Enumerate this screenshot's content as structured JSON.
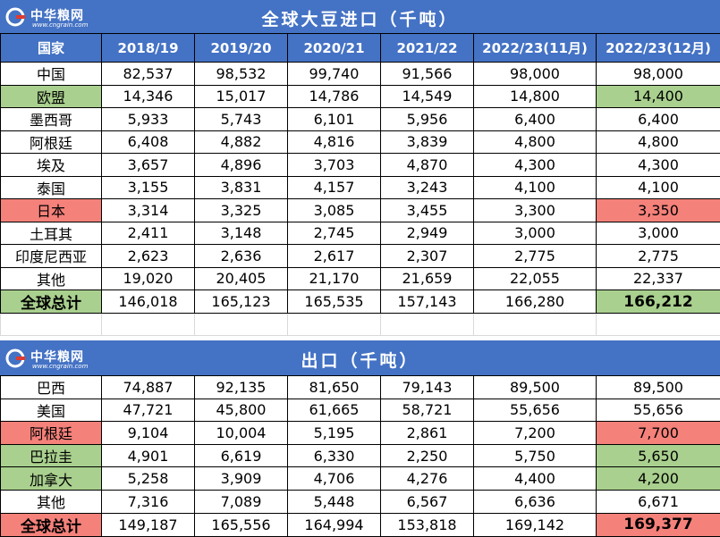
{
  "logo": {
    "text": "中华粮网",
    "url": "www.cngrain.com"
  },
  "import": {
    "title": "全球大豆进口（千吨）",
    "headers": [
      "国家",
      "2018/19",
      "2019/20",
      "2020/21",
      "2021/22",
      "2022/23(11月)",
      "2022/23(12月)"
    ],
    "rows": [
      [
        "中国",
        "82,537",
        "98,532",
        "99,740",
        "91,566",
        "98,000",
        "98,000"
      ],
      [
        "欧盟",
        "14,346",
        "15,017",
        "14,786",
        "14,549",
        "14,800",
        "14,400"
      ],
      [
        "墨西哥",
        "5,933",
        "5,743",
        "6,101",
        "5,956",
        "6,400",
        "6,400"
      ],
      [
        "阿根廷",
        "6,408",
        "4,882",
        "4,816",
        "3,839",
        "4,800",
        "4,800"
      ],
      [
        "埃及",
        "3,657",
        "4,896",
        "3,703",
        "4,870",
        "4,300",
        "4,300"
      ],
      [
        "泰国",
        "3,155",
        "3,831",
        "4,157",
        "3,243",
        "4,100",
        "4,100"
      ],
      [
        "日本",
        "3,314",
        "3,325",
        "3,085",
        "3,455",
        "3,300",
        "3,350"
      ],
      [
        "土耳其",
        "2,411",
        "3,148",
        "2,745",
        "2,949",
        "3,000",
        "3,000"
      ],
      [
        "印度尼西亚",
        "2,623",
        "2,636",
        "2,617",
        "2,307",
        "2,775",
        "2,775"
      ],
      [
        "其他",
        "19,020",
        "20,405",
        "21,170",
        "21,659",
        "22,055",
        "22,337"
      ],
      [
        "全球总计",
        "146,018",
        "165,123",
        "165,535",
        "157,143",
        "166,280",
        "166,212"
      ]
    ]
  },
  "export": {
    "title": "出口（千吨）",
    "rows": [
      [
        "巴西",
        "74,887",
        "92,135",
        "81,650",
        "79,143",
        "89,500",
        "89,500"
      ],
      [
        "美国",
        "47,721",
        "45,800",
        "61,665",
        "58,721",
        "55,656",
        "55,656"
      ],
      [
        "阿根廷",
        "9,104",
        "10,004",
        "5,195",
        "2,861",
        "7,200",
        "7,700"
      ],
      [
        "巴拉圭",
        "4,901",
        "6,619",
        "6,330",
        "2,250",
        "5,750",
        "5,650"
      ],
      [
        "加拿大",
        "5,258",
        "3,909",
        "4,706",
        "4,276",
        "4,400",
        "4,200"
      ],
      [
        "其他",
        "7,316",
        "7,089",
        "5,448",
        "6,567",
        "6,636",
        "6,671"
      ],
      [
        "全球总计",
        "149,187",
        "165,556",
        "164,994",
        "153,818",
        "169,142",
        "169,377"
      ]
    ]
  },
  "colors": {
    "header_blue": "#4472c4",
    "increase_green": "#a9d08e",
    "decrease_red": "#f4817a"
  }
}
